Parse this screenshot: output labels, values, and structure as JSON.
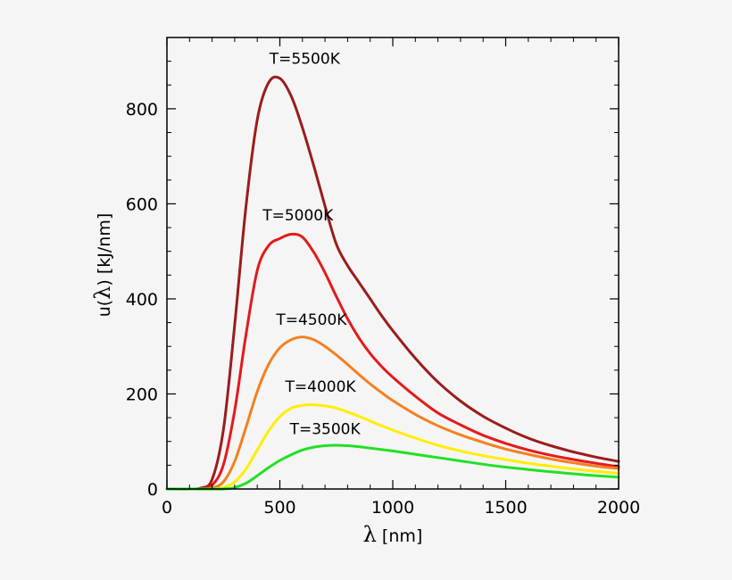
{
  "chart_data": {
    "type": "line",
    "title": "",
    "xlabel": "λ [nm]",
    "xlabel_symbol": "λ",
    "xlabel_unit": " [nm]",
    "ylabel": "u(λ) [kJ/nm]",
    "ylabel_prefix": "u(",
    "ylabel_symbol": "λ",
    "ylabel_suffix": ") [kJ/nm]",
    "xlim": [
      0,
      2000
    ],
    "ylim": [
      0,
      950
    ],
    "xticks": [
      0,
      500,
      1000,
      1500,
      2000
    ],
    "yticks": [
      0,
      200,
      400,
      600,
      800
    ],
    "grid": false,
    "x": [
      0,
      100,
      150,
      200,
      250,
      300,
      350,
      400,
      450,
      500,
      550,
      600,
      650,
      700,
      750,
      800,
      850,
      900,
      950,
      1000,
      1100,
      1200,
      1300,
      1400,
      1500,
      1600,
      1700,
      1800,
      1900,
      2000
    ],
    "series": [
      {
        "name": "T=5500K",
        "color": "#9b1c1c",
        "values": [
          0,
          0,
          2,
          20,
          125,
          345,
          595,
          777,
          855,
          864,
          827,
          760,
          680,
          595,
          515,
          470,
          435,
          400,
          365,
          333,
          275,
          225,
          185,
          153,
          128,
          107,
          91,
          78,
          67,
          58
        ]
      },
      {
        "name": "T=5000K",
        "color": "#e31a1c",
        "values": [
          0,
          0,
          1,
          8,
          51,
          165,
          325,
          460,
          512,
          527,
          536,
          530,
          498,
          455,
          405,
          358,
          318,
          285,
          258,
          235,
          195,
          160,
          135,
          113,
          96,
          82,
          71,
          62,
          54,
          47
        ]
      },
      {
        "name": "T=4500K",
        "color": "#f4801f",
        "values": [
          0,
          0,
          0,
          2,
          15,
          58,
          130,
          205,
          262,
          297,
          314,
          320,
          314,
          300,
          282,
          262,
          241,
          221,
          203,
          186,
          157,
          133,
          114,
          98,
          84,
          73,
          63,
          55,
          48,
          43
        ]
      },
      {
        "name": "T=4000K",
        "color": "#ffee00",
        "values": [
          0,
          0,
          0,
          0,
          3,
          15,
          42,
          82,
          122,
          152,
          170,
          176,
          177,
          175,
          170,
          162,
          153,
          143,
          133,
          124,
          107,
          92,
          80,
          70,
          62,
          54,
          48,
          42,
          37,
          33
        ]
      },
      {
        "name": "T=3500K",
        "color": "#22e022",
        "values": [
          0,
          0,
          0,
          0,
          0,
          3,
          12,
          28,
          45,
          60,
          72,
          82,
          88,
          91,
          92,
          91,
          89,
          86,
          83,
          80,
          73,
          66,
          59,
          52,
          46,
          41,
          36,
          32,
          28,
          25
        ]
      }
    ],
    "annotations": [
      {
        "text": "T=5500K",
        "x": 610,
        "y": 895
      },
      {
        "text": "T=5000K",
        "x": 580,
        "y": 565
      },
      {
        "text": "T=4500K",
        "x": 640,
        "y": 345
      },
      {
        "text": "T=4000K",
        "x": 680,
        "y": 205
      },
      {
        "text": "T=3500K",
        "x": 700,
        "y": 115
      }
    ]
  }
}
